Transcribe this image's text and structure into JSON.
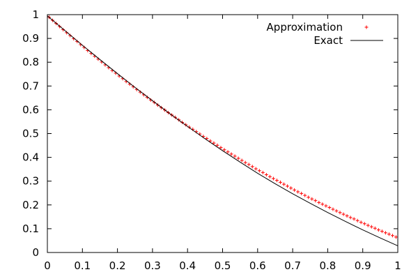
{
  "chart_data": {
    "type": "line",
    "title": "",
    "xlabel": "",
    "ylabel": "",
    "xlim": [
      0,
      1
    ],
    "ylim": [
      0,
      1
    ],
    "x_ticks": [
      "0",
      "0.1",
      "0.2",
      "0.3",
      "0.4",
      "0.5",
      "0.6",
      "0.7",
      "0.8",
      "0.9",
      "1"
    ],
    "y_ticks": [
      "0",
      "0.1",
      "0.2",
      "0.3",
      "0.4",
      "0.5",
      "0.6",
      "0.7",
      "0.8",
      "0.9",
      "1"
    ],
    "grid": false,
    "legend_position": "top-right",
    "series": [
      {
        "name": "Approximation",
        "style": "points",
        "marker": "plus",
        "color": "#ff0000",
        "x": [
          0.005,
          0.015,
          0.025,
          0.035,
          0.045,
          0.055,
          0.065,
          0.075,
          0.085,
          0.095,
          0.105,
          0.115,
          0.125,
          0.135,
          0.145,
          0.155,
          0.165,
          0.175,
          0.185,
          0.195,
          0.205,
          0.215,
          0.225,
          0.235,
          0.245,
          0.255,
          0.265,
          0.275,
          0.285,
          0.295,
          0.305,
          0.315,
          0.325,
          0.335,
          0.345,
          0.355,
          0.365,
          0.375,
          0.385,
          0.395,
          0.405,
          0.415,
          0.425,
          0.435,
          0.445,
          0.455,
          0.465,
          0.475,
          0.485,
          0.495,
          0.505,
          0.515,
          0.525,
          0.535,
          0.545,
          0.555,
          0.565,
          0.575,
          0.585,
          0.595,
          0.605,
          0.615,
          0.625,
          0.635,
          0.645,
          0.655,
          0.665,
          0.675,
          0.685,
          0.695,
          0.705,
          0.715,
          0.725,
          0.735,
          0.745,
          0.755,
          0.765,
          0.775,
          0.785,
          0.795,
          0.805,
          0.815,
          0.825,
          0.835,
          0.845,
          0.855,
          0.865,
          0.875,
          0.885,
          0.895,
          0.905,
          0.915,
          0.925,
          0.935,
          0.945,
          0.955,
          0.965,
          0.975,
          0.985,
          0.995
        ],
        "y": [
          0.989,
          0.976,
          0.963,
          0.95,
          0.937,
          0.924,
          0.912,
          0.899,
          0.887,
          0.874,
          0.862,
          0.849,
          0.837,
          0.825,
          0.813,
          0.801,
          0.789,
          0.777,
          0.765,
          0.754,
          0.742,
          0.731,
          0.719,
          0.708,
          0.697,
          0.685,
          0.674,
          0.663,
          0.652,
          0.641,
          0.631,
          0.62,
          0.609,
          0.599,
          0.588,
          0.578,
          0.568,
          0.558,
          0.547,
          0.537,
          0.527,
          0.518,
          0.508,
          0.498,
          0.488,
          0.479,
          0.469,
          0.46,
          0.451,
          0.441,
          0.432,
          0.423,
          0.414,
          0.405,
          0.396,
          0.387,
          0.378,
          0.37,
          0.361,
          0.352,
          0.344,
          0.336,
          0.327,
          0.319,
          0.311,
          0.303,
          0.295,
          0.287,
          0.279,
          0.271,
          0.263,
          0.255,
          0.248,
          0.24,
          0.232,
          0.225,
          0.218,
          0.21,
          0.203,
          0.196,
          0.189,
          0.182,
          0.175,
          0.168,
          0.161,
          0.154,
          0.147,
          0.141,
          0.134,
          0.127,
          0.121,
          0.114,
          0.108,
          0.102,
          0.095,
          0.089,
          0.083,
          0.077,
          0.071,
          0.065
        ]
      },
      {
        "name": "Exact",
        "style": "line",
        "color": "#000000",
        "x": [
          0,
          0.05,
          0.1,
          0.15,
          0.2,
          0.25,
          0.3,
          0.35,
          0.4,
          0.45,
          0.5,
          0.55,
          0.6,
          0.65,
          0.7,
          0.75,
          0.8,
          0.85,
          0.9,
          0.95,
          1
        ],
        "y": [
          0.995,
          0.933,
          0.871,
          0.811,
          0.752,
          0.694,
          0.638,
          0.583,
          0.53,
          0.478,
          0.428,
          0.38,
          0.333,
          0.289,
          0.247,
          0.207,
          0.168,
          0.131,
          0.095,
          0.061,
          0.028
        ]
      }
    ]
  }
}
